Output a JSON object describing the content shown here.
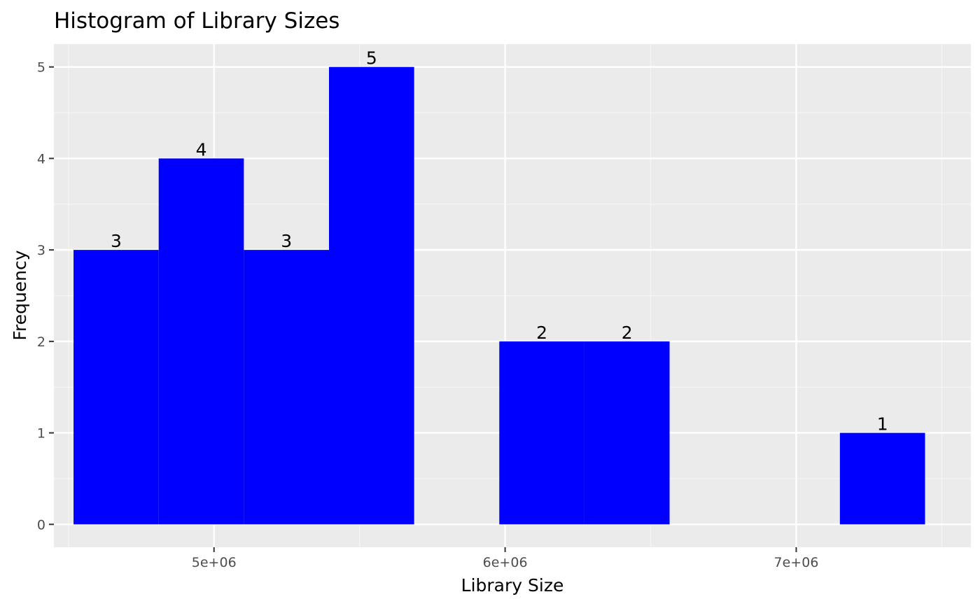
{
  "colors": {
    "panel_background": "#EBEBEB",
    "grid_major": "#FFFFFF",
    "grid_minor": "#F5F5F5",
    "bar_fill": "#0000FF",
    "tick_text": "#4D4D4D",
    "text": "#000000"
  },
  "chart_data": {
    "type": "bar",
    "title": "Histogram of Library Sizes",
    "xlabel": "Library Size",
    "ylabel": "Frequency",
    "grid": true,
    "legend": "none",
    "xlim": [
      4450000,
      7600000
    ],
    "ylim": [
      -0.25,
      5.25
    ],
    "bin_width": 292500,
    "bins": [
      {
        "x0": 4517500,
        "x1": 4810000,
        "count": 3,
        "label": "3"
      },
      {
        "x0": 4810000,
        "x1": 5102500,
        "count": 4,
        "label": "4"
      },
      {
        "x0": 5102500,
        "x1": 5395000,
        "count": 3,
        "label": "3"
      },
      {
        "x0": 5395000,
        "x1": 5687500,
        "count": 5,
        "label": "5"
      },
      {
        "x0": 5687500,
        "x1": 5980000,
        "count": 0,
        "label": ""
      },
      {
        "x0": 5980000,
        "x1": 6272500,
        "count": 2,
        "label": "2"
      },
      {
        "x0": 6272500,
        "x1": 6565000,
        "count": 2,
        "label": "2"
      },
      {
        "x0": 6565000,
        "x1": 6857500,
        "count": 0,
        "label": ""
      },
      {
        "x0": 6857500,
        "x1": 7150000,
        "count": 0,
        "label": ""
      },
      {
        "x0": 7150000,
        "x1": 7442500,
        "count": 1,
        "label": "1"
      }
    ],
    "x_ticks": [
      {
        "value": 5000000,
        "label": "5e+06"
      },
      {
        "value": 6000000,
        "label": "6e+06"
      },
      {
        "value": 7000000,
        "label": "7e+06"
      }
    ],
    "x_minor_ticks": [
      4500000,
      5500000,
      6500000,
      7500000
    ],
    "y_ticks": [
      {
        "value": 0,
        "label": "0"
      },
      {
        "value": 1,
        "label": "1"
      },
      {
        "value": 2,
        "label": "2"
      },
      {
        "value": 3,
        "label": "3"
      },
      {
        "value": 4,
        "label": "4"
      },
      {
        "value": 5,
        "label": "5"
      }
    ],
    "y_minor_ticks": [
      0.5,
      1.5,
      2.5,
      3.5,
      4.5
    ]
  }
}
